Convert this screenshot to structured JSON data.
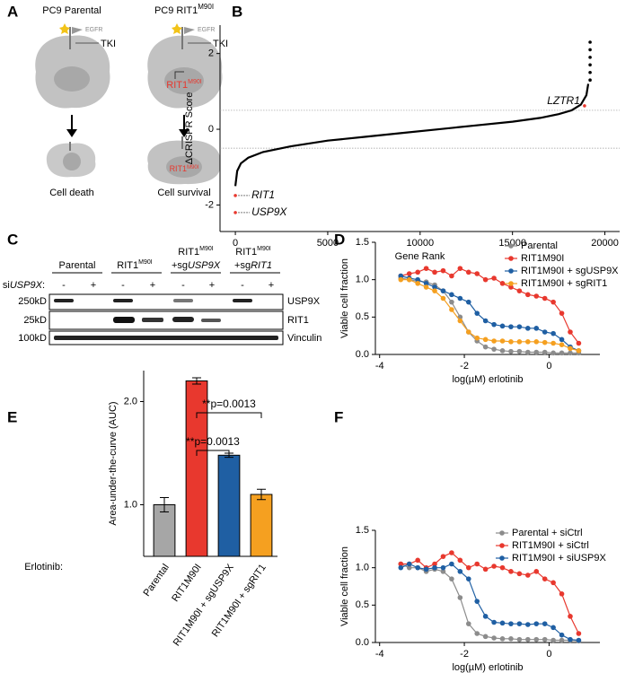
{
  "panel_labels": [
    "A",
    "B",
    "C",
    "D",
    "E",
    "F"
  ],
  "diagram": {
    "left_title": "PC9 Parental",
    "right_title": {
      "text": "PC9 RIT1",
      "sup": "M90I"
    },
    "receptor": "EGFR",
    "drug": "TKI",
    "mutant": {
      "text": "RIT1",
      "sup": "M90I"
    },
    "left_outcome": "Cell death",
    "right_outcome": "Cell survival"
  },
  "blot": {
    "groups": [
      {
        "line1": {
          "text": "Parental"
        }
      },
      {
        "line1": {
          "text": "RIT1",
          "sup": "M90I"
        }
      },
      {
        "line1": {
          "text": "RIT1",
          "sup": "M90I"
        },
        "line2": {
          "text": "+sg",
          "italic": "USP9X"
        }
      },
      {
        "line1": {
          "text": "RIT1",
          "sup": "M90I"
        },
        "line2": {
          "text": "+sg",
          "italic": "RIT1"
        }
      }
    ],
    "treatment": {
      "text": "si",
      "italic": "USP9X",
      "suffix": ":"
    },
    "lanes": [
      "-",
      "+",
      "-",
      "+",
      "-",
      "+",
      "-",
      "+"
    ],
    "markers": [
      "250kD",
      "25kD",
      "100kD"
    ],
    "proteins": [
      "USP9X",
      "RIT1",
      "Vinculin"
    ]
  },
  "chart_data": [
    {
      "type": "line",
      "xlabel": "Gene Rank",
      "ylabel": "ΔCRISPR Score",
      "xlim": [
        -830,
        20800
      ],
      "xticks": [
        0,
        5000,
        10000,
        15000,
        20000
      ],
      "ylim": [
        -2.7,
        2.75
      ],
      "yticks": [
        -2,
        0,
        2
      ],
      "reference_lines": [
        0.5,
        -0.5
      ],
      "series": [
        {
          "style": "line",
          "color": "#000000",
          "x": [
            0,
            100,
            300,
            700,
            1500,
            3000,
            5000,
            7000,
            9000,
            11000,
            13000,
            15000,
            16500,
            17500,
            18200,
            18700,
            19000,
            19100
          ],
          "values": [
            -1.5,
            -1.1,
            -0.9,
            -0.75,
            -0.6,
            -0.45,
            -0.3,
            -0.2,
            -0.1,
            0,
            0.1,
            0.2,
            0.3,
            0.4,
            0.5,
            0.65,
            0.9,
            1.2
          ]
        },
        {
          "style": "markers",
          "color": "#e8382e",
          "x": [
            0,
            0,
            18900
          ],
          "values": [
            -1.75,
            -2.2,
            0.62
          ],
          "point_labels": [
            "RIT1",
            "USP9X",
            "LZTR1"
          ]
        },
        {
          "style": "markers",
          "color": "#000000",
          "x": [
            19200,
            19200,
            19200,
            19200,
            19200,
            19200
          ],
          "values": [
            1.3,
            1.5,
            1.7,
            1.9,
            2.1,
            2.3
          ]
        }
      ]
    },
    {
      "type": "scatter",
      "xlabel": "log(µM) erlotinib",
      "ylabel": "Viable cell fraction",
      "xlim": [
        -4.1,
        1.2
      ],
      "xticks": [
        -4,
        -2,
        0
      ],
      "ylim": [
        0,
        1.5
      ],
      "yticks": [
        {
          "value": 0,
          "label": "0.0"
        },
        0.5,
        {
          "value": 1,
          "label": "1.0"
        },
        1.5
      ],
      "legend": "upper right",
      "x": [
        -3.5,
        -3.3,
        -3.1,
        -2.9,
        -2.7,
        -2.5,
        -2.3,
        -2.1,
        -1.9,
        -1.7,
        -1.5,
        -1.3,
        -1.1,
        -0.9,
        -0.7,
        -0.5,
        -0.3,
        -0.1,
        0.1,
        0.3,
        0.5,
        0.7
      ],
      "series": [
        {
          "name": "Parental",
          "color": "#8c8c8c",
          "values": [
            1.02,
            1.0,
            0.98,
            0.97,
            0.93,
            0.85,
            0.7,
            0.5,
            0.3,
            0.18,
            0.1,
            0.07,
            0.05,
            0.04,
            0.04,
            0.03,
            0.03,
            0.03,
            0.02,
            0.02,
            0.02,
            0.02
          ]
        },
        {
          "name": "RIT1M90I",
          "color": "#e8382e",
          "values": [
            1.05,
            1.08,
            1.1,
            1.15,
            1.1,
            1.12,
            1.05,
            1.15,
            1.1,
            1.08,
            1.0,
            1.02,
            0.95,
            0.9,
            0.85,
            0.8,
            0.78,
            0.75,
            0.7,
            0.55,
            0.3,
            0.15
          ]
        },
        {
          "name": "RIT1M90I + sgUSP9X",
          "color": "#1f5fa3",
          "values": [
            1.05,
            1.02,
            1.0,
            0.95,
            0.9,
            0.85,
            0.8,
            0.75,
            0.7,
            0.55,
            0.45,
            0.4,
            0.38,
            0.37,
            0.37,
            0.35,
            0.35,
            0.3,
            0.28,
            0.2,
            0.1,
            0.05
          ]
        },
        {
          "name": "RIT1M90I + sgRIT1",
          "color": "#f5a020",
          "values": [
            1.0,
            1.0,
            0.95,
            0.9,
            0.85,
            0.75,
            0.6,
            0.45,
            0.3,
            0.22,
            0.2,
            0.18,
            0.18,
            0.17,
            0.17,
            0.17,
            0.17,
            0.16,
            0.15,
            0.13,
            0.08,
            0.05
          ]
        }
      ]
    },
    {
      "type": "bar",
      "ylabel": "Area-under-the-curve (AUC)",
      "row_label": "Erlotinib:",
      "categories": [
        "Parental",
        "RIT1M90I",
        "RIT1M90I + sgUSP9X",
        "RIT1M90I + sgRIT1"
      ],
      "values": [
        1.0,
        2.2,
        1.48,
        1.1
      ],
      "errors": [
        0.07,
        0.03,
        0.02,
        0.05
      ],
      "colors": [
        "#a6a6a6",
        "#e8382e",
        "#1f5fa3",
        "#f5a020"
      ],
      "ylim": [
        0.5,
        2.3
      ],
      "yticks": [
        {
          "value": 1,
          "label": "1.0"
        },
        {
          "value": 2,
          "label": "2.0"
        }
      ],
      "annotations": [
        "**p=0.0013",
        "**p=0.0013"
      ]
    },
    {
      "type": "scatter",
      "xlabel": "log(µM) erlotinib",
      "ylabel": "Viable cell fraction",
      "xlim": [
        -4.1,
        1.2
      ],
      "xticks": [
        -4,
        -2,
        0
      ],
      "ylim": [
        0,
        1.5
      ],
      "yticks": [
        {
          "value": 0,
          "label": "0.0"
        },
        0.5,
        {
          "value": 1,
          "label": "1.0"
        },
        1.5
      ],
      "legend": "upper right",
      "x": [
        -3.5,
        -3.3,
        -3.1,
        -2.9,
        -2.7,
        -2.5,
        -2.3,
        -2.1,
        -1.9,
        -1.7,
        -1.5,
        -1.3,
        -1.1,
        -0.9,
        -0.7,
        -0.5,
        -0.3,
        -0.1,
        0.1,
        0.3,
        0.5,
        0.7
      ],
      "series": [
        {
          "name": "Parental + siCtrl",
          "color": "#8c8c8c",
          "values": [
            1.05,
            1.0,
            1.0,
            0.95,
            0.98,
            0.95,
            0.85,
            0.6,
            0.25,
            0.12,
            0.08,
            0.06,
            0.05,
            0.05,
            0.04,
            0.04,
            0.04,
            0.04,
            0.03,
            0.03,
            0.03,
            0.02
          ]
        },
        {
          "name": "RIT1M90I + siCtrl",
          "color": "#e8382e",
          "values": [
            1.05,
            1.05,
            1.1,
            1.0,
            1.05,
            1.15,
            1.2,
            1.1,
            1.0,
            1.05,
            0.98,
            1.02,
            1.0,
            0.95,
            0.92,
            0.9,
            0.95,
            0.85,
            0.8,
            0.65,
            0.35,
            0.12
          ]
        },
        {
          "name": "RIT1M90I + siUSP9X",
          "color": "#1f5fa3",
          "values": [
            1.0,
            1.05,
            1.0,
            0.98,
            1.0,
            1.0,
            1.05,
            0.95,
            0.85,
            0.55,
            0.35,
            0.27,
            0.26,
            0.25,
            0.25,
            0.24,
            0.25,
            0.25,
            0.2,
            0.1,
            0.04,
            0.03
          ]
        }
      ]
    }
  ]
}
